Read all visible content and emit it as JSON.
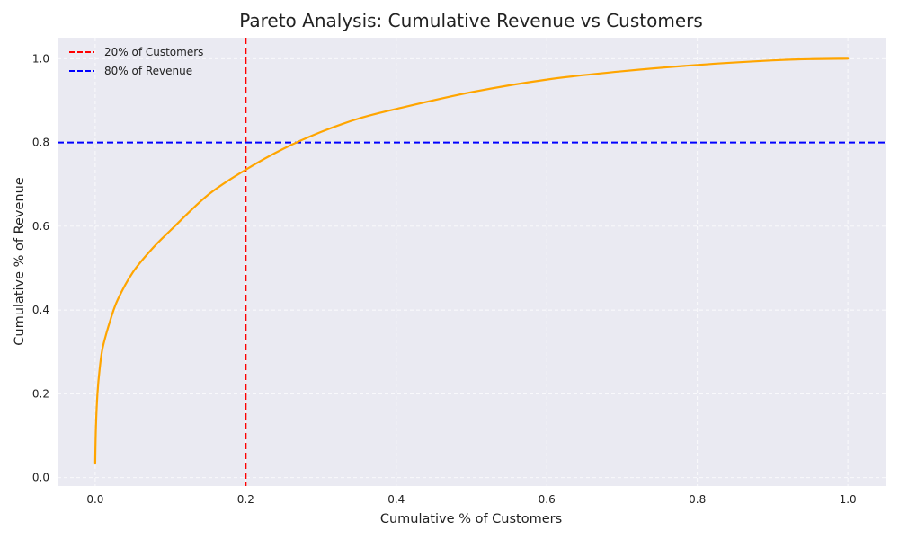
{
  "chart_data": {
    "type": "line",
    "title": "Pareto Analysis: Cumulative Revenue vs Customers",
    "xlabel": "Cumulative % of Customers",
    "ylabel": "Cumulative % of Revenue",
    "xlim": [
      -0.05,
      1.05
    ],
    "ylim": [
      -0.02,
      1.05
    ],
    "x_ticks": [
      "0.0",
      "0.2",
      "0.4",
      "0.6",
      "0.8",
      "1.0"
    ],
    "y_ticks": [
      "0.0",
      "0.2",
      "0.4",
      "0.6",
      "0.8",
      "1.0"
    ],
    "grid": true,
    "legend_position": "top-left",
    "series": [
      {
        "color": "#FFA500",
        "x": [
          0.0,
          0.001,
          0.003,
          0.006,
          0.01,
          0.02,
          0.03,
          0.05,
          0.075,
          0.1,
          0.15,
          0.2,
          0.25,
          0.3,
          0.35,
          0.4,
          0.5,
          0.6,
          0.7,
          0.8,
          0.9,
          0.95,
          1.0
        ],
        "y": [
          0.035,
          0.12,
          0.2,
          0.26,
          0.31,
          0.375,
          0.425,
          0.49,
          0.545,
          0.59,
          0.675,
          0.735,
          0.785,
          0.825,
          0.857,
          0.88,
          0.92,
          0.95,
          0.97,
          0.985,
          0.996,
          0.999,
          1.0
        ]
      }
    ],
    "reference_lines": [
      {
        "orientation": "vertical",
        "value": 0.2,
        "color": "#FF0000",
        "label": "20% of Customers"
      },
      {
        "orientation": "horizontal",
        "value": 0.8,
        "color": "#0000FF",
        "label": "80% of Revenue"
      }
    ],
    "colors": {
      "plot_background": "#EAEAF2",
      "grid": "#FFFFFF"
    }
  }
}
